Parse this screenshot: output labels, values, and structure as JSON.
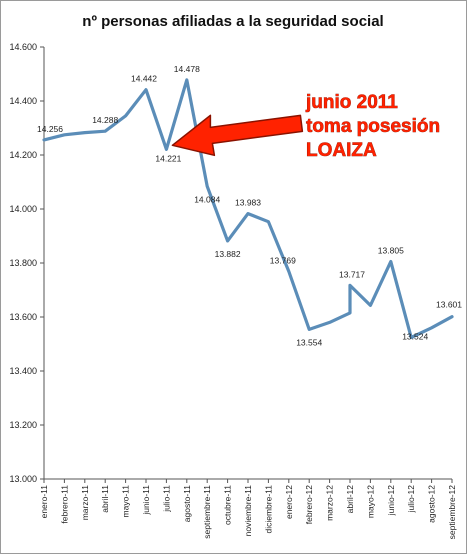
{
  "chart_data": {
    "type": "line",
    "title": "nº personas afiliadas a la seguridad social",
    "categories": [
      "enero-11",
      "febrero-11",
      "marzo-11",
      "abril-11",
      "mayo-11",
      "junio-11",
      "julio-11",
      "agosto-11",
      "septiembre-11",
      "octubre-11",
      "noviembre-11",
      "diciembre-11",
      "enero-12",
      "febrero-12",
      "marzo-12",
      "abril-12",
      "abril-12",
      "mayo-12",
      "junio-12",
      "julio-12",
      "agosto-12",
      "septiembre-12"
    ],
    "category_labels": [
      "enero-11",
      "febrero-11",
      "marzo-11",
      "abril-11",
      "mayo-11",
      "junio-11",
      "julio-11",
      "agosto-11",
      "septiembre-11",
      "octubre-11",
      "noviembre-11",
      "diciembre-11",
      "enero-12",
      "febrero-12",
      "marzo-12",
      "abril-12",
      "mayo-12",
      "junio-12",
      "julio-12",
      "agosto-12",
      "septiembre-12"
    ],
    "x": [
      0,
      1,
      2,
      3,
      4,
      5,
      6,
      7,
      8,
      9,
      10,
      11,
      12,
      13,
      14,
      15,
      15,
      16,
      17,
      18,
      19,
      20
    ],
    "values": [
      14256,
      14275,
      14283,
      14288,
      14345,
      14442,
      14221,
      14478,
      14084,
      13882,
      13983,
      13953,
      13769,
      13554,
      13580,
      13615,
      13717,
      13643,
      13805,
      13524,
      13560,
      13601
    ],
    "data_labels": [
      {
        "index": 0,
        "text": "14.256"
      },
      {
        "index": 3,
        "text": "14.288"
      },
      {
        "index": 5,
        "text": "14.442"
      },
      {
        "index": 6,
        "text": "14.221"
      },
      {
        "index": 7,
        "text": "14.478"
      },
      {
        "index": 8,
        "text": "14.084"
      },
      {
        "index": 9,
        "text": "13.882"
      },
      {
        "index": 10,
        "text": "13.983"
      },
      {
        "index": 12,
        "text": "13.769"
      },
      {
        "index": 13,
        "text": "13.554"
      },
      {
        "index": 16,
        "text": "13.717"
      },
      {
        "index": 18,
        "text": "13.805"
      },
      {
        "index": 19,
        "text": "13.524"
      },
      {
        "index": 21,
        "text": "13.601"
      }
    ],
    "ylim": [
      13000,
      14600
    ],
    "yticks": [
      13000,
      13200,
      13400,
      13600,
      13800,
      14000,
      14200,
      14400,
      14600
    ],
    "ytick_labels": [
      "13.000",
      "13.200",
      "13.400",
      "13.600",
      "13.800",
      "14.000",
      "14.200",
      "14.400",
      "14.600"
    ],
    "grid": false,
    "legend": "none",
    "line_color": "#5b8db8",
    "annotation": {
      "lines": [
        "junio 2011",
        "toma posesión",
        "LOAIZA"
      ],
      "color": "#ff2200",
      "arrow_target_index": 6
    }
  }
}
